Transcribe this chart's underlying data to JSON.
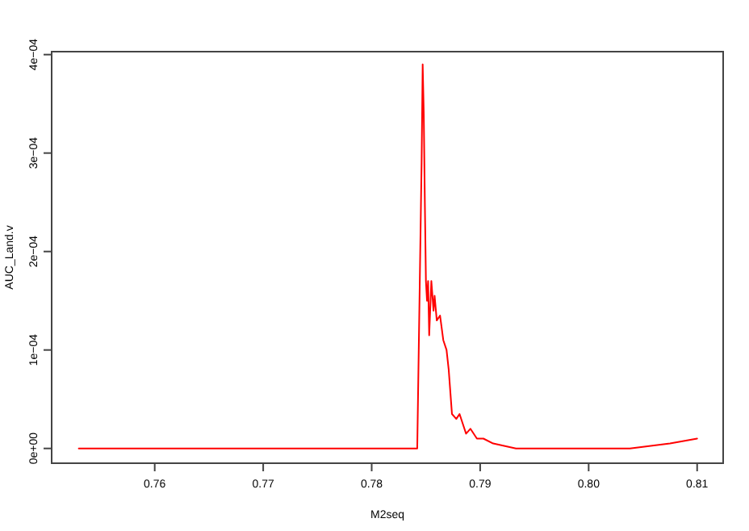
{
  "chart_data": {
    "type": "line",
    "xlabel": "M2seq",
    "ylabel": "AUC_Land.v",
    "xlim": [
      0.7505,
      0.8124
    ],
    "ylim": [
      -1.5e-05,
      0.000403
    ],
    "xticks": [
      {
        "value": 0.76,
        "label": "0.76"
      },
      {
        "value": 0.77,
        "label": "0.77"
      },
      {
        "value": 0.78,
        "label": "0.78"
      },
      {
        "value": 0.79,
        "label": "0.79"
      },
      {
        "value": 0.8,
        "label": "0.80"
      },
      {
        "value": 0.81,
        "label": "0.81"
      }
    ],
    "yticks": [
      {
        "value": 0,
        "label": "0e+00"
      },
      {
        "value": 0.0001,
        "label": "1e−04"
      },
      {
        "value": 0.0002,
        "label": "2e−04"
      },
      {
        "value": 0.0003,
        "label": "3e−04"
      },
      {
        "value": 0.0004,
        "label": "4e−04"
      }
    ],
    "grid": false,
    "marker": "none",
    "line_style": "solid",
    "series": [
      {
        "color": "#ff0000",
        "x": [
          0.753,
          0.77,
          0.78,
          0.7842,
          0.7846,
          0.7847,
          0.7848,
          0.7849,
          0.785,
          0.7851,
          0.7852,
          0.7853,
          0.7855,
          0.7857,
          0.7858,
          0.786,
          0.7863,
          0.7866,
          0.7869,
          0.7871,
          0.7874,
          0.7878,
          0.7881,
          0.7884,
          0.7887,
          0.7891,
          0.7897,
          0.7903,
          0.7912,
          0.7933,
          0.7963,
          0.8,
          0.8038,
          0.8075,
          0.81
        ],
        "values": [
          0,
          0,
          0,
          0,
          0.00029,
          0.00039,
          0.00034,
          0.00025,
          0.00017,
          0.00015,
          0.00017,
          0.000115,
          0.00017,
          0.00014,
          0.000155,
          0.00013,
          0.000135,
          0.00011,
          0.0001,
          8e-05,
          3.5e-05,
          3e-05,
          3.5e-05,
          2.5e-05,
          1.5e-05,
          2e-05,
          1e-05,
          1e-05,
          5e-06,
          0,
          0,
          0,
          0,
          5e-06,
          1e-05
        ]
      }
    ]
  }
}
